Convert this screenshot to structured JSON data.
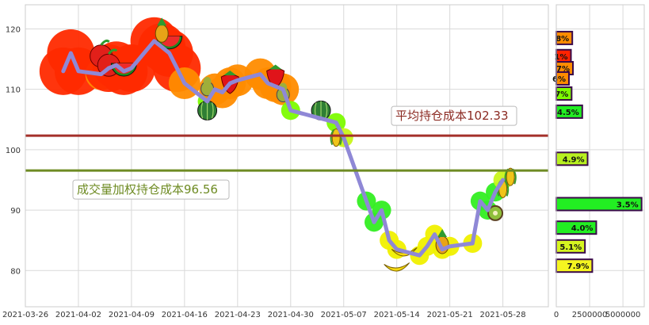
{
  "chart_data": {
    "type": "line",
    "x_ticks": [
      "2021-03-26",
      "2021-04-02",
      "2021-04-09",
      "2021-04-16",
      "2021-04-23",
      "2021-04-30",
      "2021-05-07",
      "2021-05-14",
      "2021-05-21",
      "2021-05-28"
    ],
    "y_ticks": [
      80,
      90,
      100,
      110,
      120
    ],
    "ylim": [
      74,
      124
    ],
    "xlim": [
      "2021-03-26",
      "2021-06-03"
    ],
    "grid": true,
    "series": [
      {
        "x": [
          "2021-03-31",
          "2021-04-01",
          "2021-04-02",
          "2021-04-05",
          "2021-04-06",
          "2021-04-07",
          "2021-04-08",
          "2021-04-09",
          "2021-04-12",
          "2021-04-13",
          "2021-04-14",
          "2021-04-15",
          "2021-04-16",
          "2021-04-19",
          "2021-04-20",
          "2021-04-21",
          "2021-04-22",
          "2021-04-23",
          "2021-04-26",
          "2021-04-27",
          "2021-04-28",
          "2021-04-29",
          "2021-04-30",
          "2021-05-06",
          "2021-05-07",
          "2021-05-10",
          "2021-05-11",
          "2021-05-12",
          "2021-05-13",
          "2021-05-14",
          "2021-05-17",
          "2021-05-18",
          "2021-05-19",
          "2021-05-20",
          "2021-05-21",
          "2021-05-24",
          "2021-05-25",
          "2021-05-26",
          "2021-05-27",
          "2021-05-28"
        ],
        "y": [
          113.0,
          116.0,
          113.0,
          112.5,
          113.5,
          114.0,
          113.0,
          113.5,
          118.0,
          117.0,
          116.0,
          113.5,
          111.0,
          108.0,
          110.0,
          109.5,
          111.0,
          111.5,
          112.5,
          111.0,
          110.5,
          110.0,
          106.5,
          104.5,
          102.0,
          91.5,
          88.0,
          90.0,
          85.0,
          83.5,
          82.5,
          84.0,
          86.0,
          83.5,
          84.0,
          84.5,
          91.5,
          90.0,
          93.0,
          95.0
        ]
      }
    ],
    "avg_cost": 102.33,
    "avg_cost_label": "平均持仓成本102.33",
    "vwap_cost": 96.56,
    "vwap_cost_label": "成交量加权持仓成本96.56",
    "side_x_ticks": [
      "0",
      "2500000",
      "5000000"
    ],
    "side_bars": [
      {
        "price": 118.5,
        "volume": 1200000,
        "label": "8%",
        "color": "#ff8c00"
      },
      {
        "price": 115.5,
        "volume": 1100000,
        "label": "1%",
        "color": "#ff2200"
      },
      {
        "price": 113.5,
        "volume": 1250000,
        "label": "7%",
        "color": "#ff8c00"
      },
      {
        "price": 111.8,
        "volume": 950000,
        "label": "6%",
        "color": "#ff8c00"
      },
      {
        "price": 109.3,
        "volume": 1150000,
        "label": "7%",
        "color": "#7cfc00"
      },
      {
        "price": 106.3,
        "volume": 1950000,
        "label": "4.5%",
        "color": "#22ee22"
      },
      {
        "price": 98.5,
        "volume": 2350000,
        "label": "4.9%",
        "color": "#b8f020"
      },
      {
        "price": 91.0,
        "volume": 6400000,
        "label": "3.5%",
        "color": "#22ee22"
      },
      {
        "price": 87.1,
        "volume": 3000000,
        "label": "4.0%",
        "color": "#22ee22"
      },
      {
        "price": 84.0,
        "volume": 2150000,
        "label": "5.1%",
        "color": "#d6f520"
      },
      {
        "price": 80.8,
        "volume": 2700000,
        "label": "7.9%",
        "color": "#f5f520"
      }
    ],
    "side_xlim": [
      0,
      6600000
    ]
  }
}
